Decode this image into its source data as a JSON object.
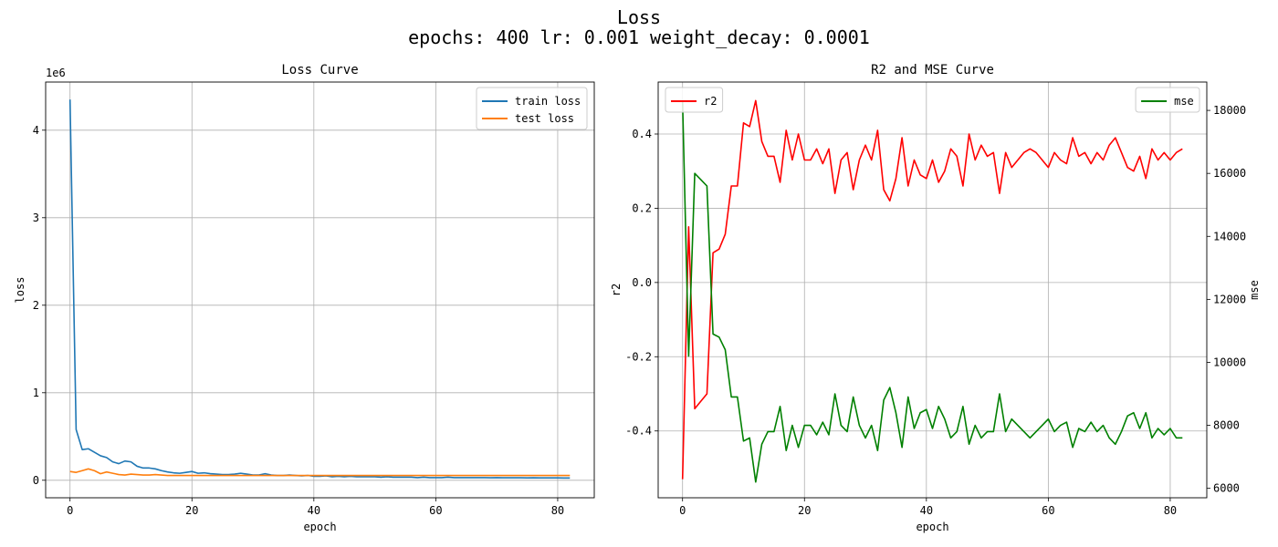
{
  "figure": {
    "suptitle_line1": "Loss",
    "suptitle_line2": "epochs: 400 lr: 0.001 weight_decay: 0.0001"
  },
  "chart_data": [
    {
      "type": "line",
      "title": "Loss Curve",
      "xlabel": "epoch",
      "ylabel": "loss",
      "y_offset_label": "1e6",
      "y_scale_factor": 1000000,
      "xlim": [
        -4,
        86
      ],
      "ylim": [
        -200000,
        4550000
      ],
      "xticks": [
        0,
        20,
        40,
        60,
        80
      ],
      "yticks": [
        0,
        1,
        2,
        3,
        4
      ],
      "grid": true,
      "legend_position": "upper right",
      "x": [
        0,
        1,
        2,
        3,
        4,
        5,
        6,
        7,
        8,
        9,
        10,
        11,
        12,
        13,
        14,
        15,
        16,
        17,
        18,
        19,
        20,
        21,
        22,
        23,
        24,
        25,
        26,
        27,
        28,
        29,
        30,
        31,
        32,
        33,
        34,
        35,
        36,
        37,
        38,
        39,
        40,
        41,
        42,
        43,
        44,
        45,
        46,
        47,
        48,
        49,
        50,
        51,
        52,
        53,
        54,
        55,
        56,
        57,
        58,
        59,
        60,
        61,
        62,
        63,
        64,
        65,
        66,
        67,
        68,
        69,
        70,
        71,
        72,
        73,
        74,
        75,
        76,
        77,
        78,
        79,
        80,
        81,
        82
      ],
      "series": [
        {
          "name": "train loss",
          "color": "#1f77b4",
          "values": [
            4350000,
            580000,
            350000,
            360000,
            320000,
            280000,
            260000,
            210000,
            190000,
            220000,
            210000,
            160000,
            140000,
            140000,
            130000,
            110000,
            95000,
            85000,
            80000,
            90000,
            100000,
            80000,
            85000,
            75000,
            70000,
            65000,
            65000,
            70000,
            80000,
            70000,
            60000,
            60000,
            75000,
            60000,
            55000,
            55000,
            60000,
            55000,
            50000,
            55000,
            45000,
            45000,
            50000,
            40000,
            45000,
            40000,
            45000,
            40000,
            40000,
            40000,
            40000,
            35000,
            40000,
            35000,
            35000,
            35000,
            35000,
            30000,
            35000,
            30000,
            30000,
            30000,
            35000,
            30000,
            30000,
            30000,
            30000,
            30000,
            30000,
            28000,
            30000,
            28000,
            28000,
            28000,
            28000,
            27000,
            28000,
            27000,
            27000,
            27000,
            27000,
            26000,
            26000
          ]
        },
        {
          "name": "test loss",
          "color": "#ff7f0e",
          "values": [
            100000,
            90000,
            110000,
            130000,
            110000,
            75000,
            95000,
            80000,
            65000,
            60000,
            70000,
            65000,
            60000,
            60000,
            65000,
            60000,
            55000,
            55000,
            55000,
            55000,
            55000,
            55000,
            55000,
            55000,
            55000,
            55000,
            55000,
            55000,
            55000,
            55000,
            55000,
            55000,
            55000,
            55000,
            55000,
            55000,
            55000,
            55000,
            55000,
            55000,
            55000,
            55000,
            55000,
            55000,
            55000,
            55000,
            55000,
            55000,
            55000,
            55000,
            55000,
            55000,
            55000,
            55000,
            55000,
            55000,
            55000,
            55000,
            55000,
            55000,
            55000,
            55000,
            55000,
            55000,
            55000,
            55000,
            55000,
            55000,
            55000,
            55000,
            55000,
            55000,
            55000,
            55000,
            55000,
            55000,
            55000,
            55000,
            55000,
            55000,
            55000,
            55000,
            55000
          ]
        }
      ]
    },
    {
      "type": "line",
      "title": "R2 and MSE Curve",
      "xlabel": "epoch",
      "ylabel": "r2",
      "ylabel_right": "mse",
      "xlim": [
        -4,
        86
      ],
      "ylim": [
        -0.58,
        0.54
      ],
      "ylim_right": [
        5700,
        18900
      ],
      "xticks": [
        0,
        20,
        40,
        60,
        80
      ],
      "yticks": [
        -0.4,
        -0.2,
        0.0,
        0.2,
        0.4
      ],
      "yticks_right": [
        6000,
        8000,
        10000,
        12000,
        14000,
        16000,
        18000
      ],
      "grid": true,
      "legend_positions": [
        "upper left",
        "upper right"
      ],
      "x": [
        0,
        1,
        2,
        3,
        4,
        5,
        6,
        7,
        8,
        9,
        10,
        11,
        12,
        13,
        14,
        15,
        16,
        17,
        18,
        19,
        20,
        21,
        22,
        23,
        24,
        25,
        26,
        27,
        28,
        29,
        30,
        31,
        32,
        33,
        34,
        35,
        36,
        37,
        38,
        39,
        40,
        41,
        42,
        43,
        44,
        45,
        46,
        47,
        48,
        49,
        50,
        51,
        52,
        53,
        54,
        55,
        56,
        57,
        58,
        59,
        60,
        61,
        62,
        63,
        64,
        65,
        66,
        67,
        68,
        69,
        70,
        71,
        72,
        73,
        74,
        75,
        76,
        77,
        78,
        79,
        80,
        81,
        82
      ],
      "series": [
        {
          "name": "r2",
          "color": "#ff0000",
          "axis": "left",
          "values": [
            -0.53,
            0.15,
            -0.34,
            -0.32,
            -0.3,
            0.08,
            0.09,
            0.13,
            0.26,
            0.26,
            0.43,
            0.42,
            0.49,
            0.38,
            0.34,
            0.34,
            0.27,
            0.41,
            0.33,
            0.4,
            0.33,
            0.33,
            0.36,
            0.32,
            0.36,
            0.24,
            0.33,
            0.35,
            0.25,
            0.33,
            0.37,
            0.33,
            0.41,
            0.25,
            0.22,
            0.28,
            0.39,
            0.26,
            0.33,
            0.29,
            0.28,
            0.33,
            0.27,
            0.3,
            0.36,
            0.34,
            0.26,
            0.4,
            0.33,
            0.37,
            0.34,
            0.35,
            0.24,
            0.35,
            0.31,
            0.33,
            0.35,
            0.36,
            0.35,
            0.33,
            0.31,
            0.35,
            0.33,
            0.32,
            0.39,
            0.34,
            0.35,
            0.32,
            0.35,
            0.33,
            0.37,
            0.39,
            0.35,
            0.31,
            0.3,
            0.34,
            0.28,
            0.36,
            0.33,
            0.35,
            0.33,
            0.35,
            0.36
          ]
        },
        {
          "name": "mse",
          "color": "#008000",
          "axis": "right",
          "values": [
            18300,
            10200,
            16000,
            15800,
            15600,
            10900,
            10800,
            10400,
            8900,
            8900,
            7500,
            7600,
            6200,
            7400,
            7800,
            7800,
            8600,
            7200,
            8000,
            7300,
            8000,
            8000,
            7700,
            8100,
            7700,
            9000,
            8000,
            7800,
            8900,
            8000,
            7600,
            8000,
            7200,
            8800,
            9200,
            8400,
            7300,
            8900,
            7900,
            8400,
            8500,
            7900,
            8600,
            8200,
            7600,
            7800,
            8600,
            7400,
            8000,
            7600,
            7800,
            7800,
            9000,
            7800,
            8200,
            8000,
            7800,
            7600,
            7800,
            8000,
            8200,
            7800,
            8000,
            8100,
            7300,
            7900,
            7800,
            8100,
            7800,
            8000,
            7600,
            7400,
            7800,
            8300,
            8400,
            7900,
            8400,
            7600,
            7900,
            7700,
            7900,
            7600,
            7600
          ]
        }
      ]
    }
  ]
}
